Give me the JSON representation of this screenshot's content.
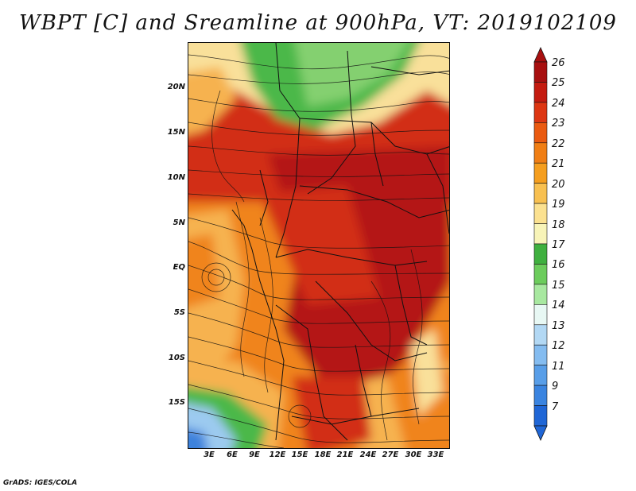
{
  "title": "WBPT [C] and Sreamline at 900hPa, VT: 2019102109",
  "footer": "GrADS: IGES/COLA",
  "y_ticks": [
    "20N",
    "15N",
    "10N",
    "5N",
    "EQ",
    "5S",
    "10S",
    "15S"
  ],
  "x_ticks": [
    "3E",
    "6E",
    "9E",
    "12E",
    "15E",
    "18E",
    "21E",
    "24E",
    "27E",
    "30E",
    "33E"
  ],
  "colorbar": {
    "labels": [
      "26",
      "25",
      "24",
      "23",
      "22",
      "21",
      "20",
      "19",
      "18",
      "17",
      "16",
      "15",
      "14",
      "13",
      "12",
      "11",
      "9",
      "7"
    ],
    "colors": [
      "#a81010",
      "#c41b10",
      "#dd3612",
      "#ea5a10",
      "#f07e14",
      "#f59e1e",
      "#f8c050",
      "#fbe190",
      "#f8f4b8",
      "#3fb03f",
      "#6ccc5c",
      "#a8e8a0",
      "#e8f8f4",
      "#b2d8f4",
      "#84bcf0",
      "#589ee8",
      "#3a84e0",
      "#1f66d6"
    ]
  },
  "colors": {
    "dark_red": "#b41612",
    "red": "#d22e14",
    "orange_red": "#e4481a",
    "orange": "#f0841e",
    "light_orange": "#f6b250",
    "yellow": "#f9e09a",
    "green": "#4cb848",
    "light_green": "#84d070",
    "light_blue": "#9ccaf0",
    "blue": "#3c82dc"
  }
}
